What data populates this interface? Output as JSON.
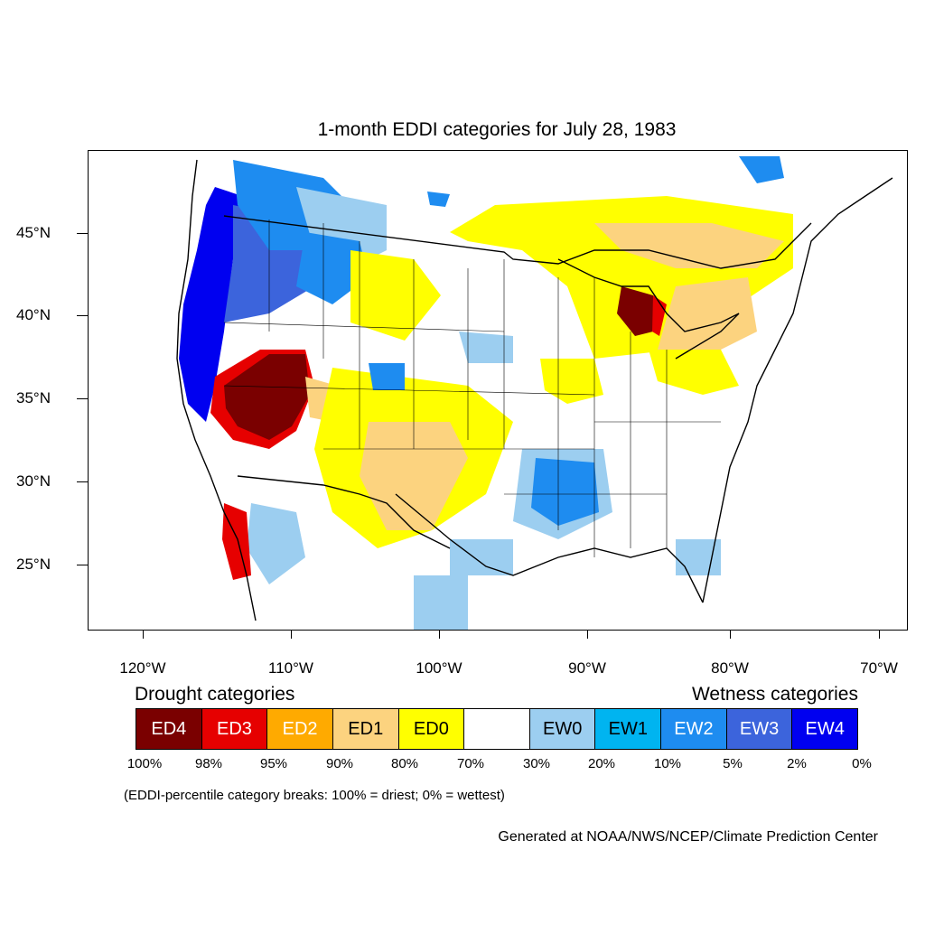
{
  "title": "1-month EDDI categories for July 28, 1983",
  "map": {
    "latitude_labels": [
      "45°N",
      "40°N",
      "35°N",
      "30°N",
      "25°N"
    ],
    "longitude_labels": [
      "120°W",
      "110°W",
      "100°W",
      "90°W",
      "80°W",
      "70°W"
    ],
    "regions": [
      {
        "category": "EW4",
        "area": "Pacific Northwest coast"
      },
      {
        "category": "EW3",
        "area": "Oregon / Washington interior"
      },
      {
        "category": "EW2",
        "area": "northern Rockies"
      },
      {
        "category": "ED4",
        "area": "Nevada / Utah"
      },
      {
        "category": "ED3",
        "area": "southern California edge"
      },
      {
        "category": "ED1",
        "area": "southern Plains / Texas"
      },
      {
        "category": "ED0",
        "area": "Great Lakes / Northeast"
      },
      {
        "category": "ED4",
        "area": "Lower Michigan"
      },
      {
        "category": "EW2",
        "area": "Lower Mississippi Valley"
      },
      {
        "category": "EW0",
        "area": "Gulf coast / Mexico"
      }
    ]
  },
  "legend": {
    "drought_title": "Drought categories",
    "wetness_title": "Wetness categories",
    "categories": [
      {
        "label": "ED4",
        "color": "#7a0000",
        "text_color": "#ffffff"
      },
      {
        "label": "ED3",
        "color": "#e60000",
        "text_color": "#ffffff"
      },
      {
        "label": "ED2",
        "color": "#ffaa00",
        "text_color": "#ffffff"
      },
      {
        "label": "ED1",
        "color": "#fcd37f",
        "text_color": "#000000"
      },
      {
        "label": "ED0",
        "color": "#ffff00",
        "text_color": "#000000"
      },
      {
        "label": "",
        "color": "#ffffff",
        "text_color": "#000000"
      },
      {
        "label": "EW0",
        "color": "#9ccef0",
        "text_color": "#000000"
      },
      {
        "label": "EW1",
        "color": "#00b4f0",
        "text_color": "#000000"
      },
      {
        "label": "EW2",
        "color": "#1e8cf0",
        "text_color": "#ffffff"
      },
      {
        "label": "EW3",
        "color": "#3c64dc",
        "text_color": "#ffffff"
      },
      {
        "label": "EW4",
        "color": "#0000f0",
        "text_color": "#ffffff"
      }
    ],
    "percent_breaks": [
      "100%",
      "98%",
      "95%",
      "90%",
      "80%",
      "70%",
      "30%",
      "20%",
      "10%",
      "5%",
      "2%",
      "0%"
    ]
  },
  "note": "(EDDI-percentile category breaks: 100% = driest; 0% = wettest)",
  "credit": "Generated at NOAA/NWS/NCEP/Climate Prediction Center"
}
